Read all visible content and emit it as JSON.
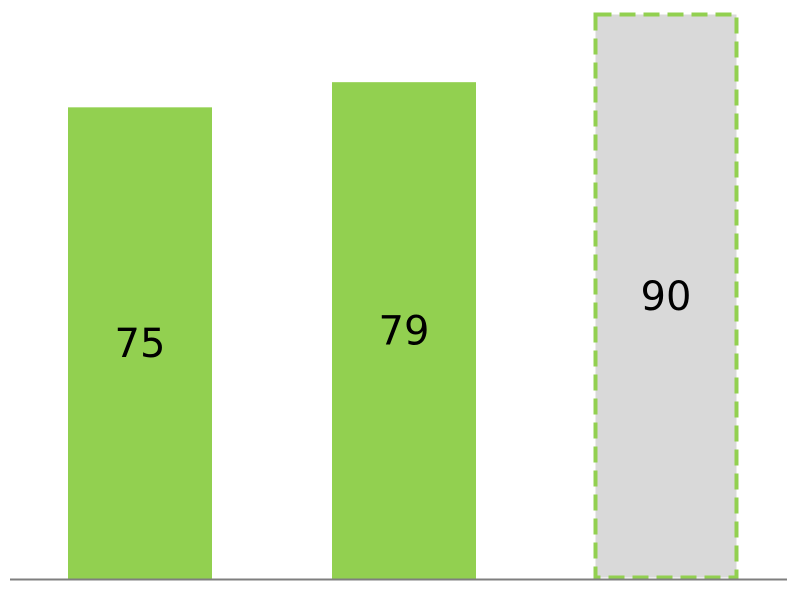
{
  "chart_data": {
    "type": "bar",
    "categories": [
      "",
      "",
      ""
    ],
    "values": [
      75,
      79,
      90
    ],
    "data_labels": [
      "75",
      "79",
      "90"
    ],
    "bar_styles": [
      "actual",
      "actual",
      "target"
    ],
    "title": "",
    "xlabel": "",
    "ylabel": "",
    "ylim": [
      0,
      90
    ],
    "grid": false,
    "legend": "none",
    "axes_visible": false,
    "baseline_visible": true
  },
  "colors": {
    "bar_fill": "#92d050",
    "target_fill": "#d9d9d9",
    "target_border": "#92d050",
    "baseline": "#7f7f7f",
    "label": "#000000"
  }
}
